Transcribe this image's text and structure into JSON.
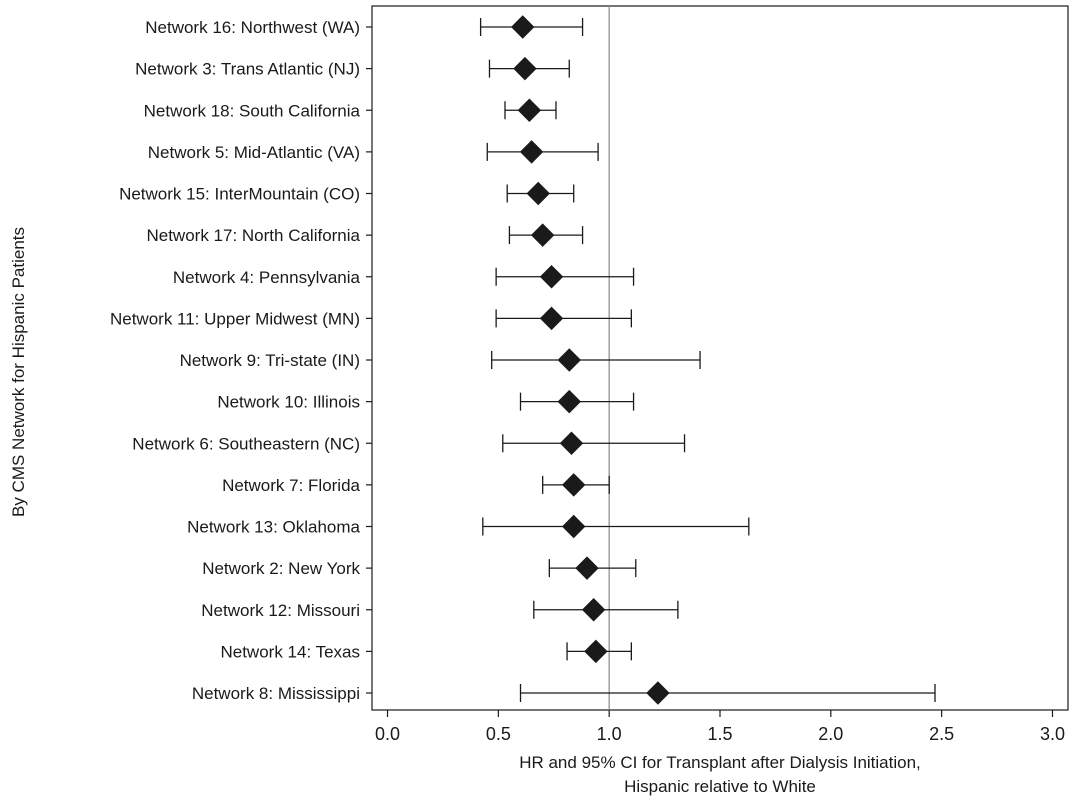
{
  "chart_data": {
    "type": "scatter",
    "subtype": "forest-plot",
    "title": "",
    "ylabel": "By CMS Network for Hispanic Patients",
    "xlabel_lines": [
      "HR and 95% CI for Transplant after Dialysis Initiation,",
      "Hispanic relative to White"
    ],
    "xlim": [
      -0.07,
      3.07
    ],
    "x_ticks": [
      0.0,
      0.5,
      1.0,
      1.5,
      2.0,
      2.5,
      3.0
    ],
    "x_tick_labels": [
      "0.0",
      "0.5",
      "1.0",
      "1.5",
      "2.0",
      "2.5",
      "3.0"
    ],
    "reference_line": 1.0,
    "grid": false,
    "marker": "diamond",
    "marker_color": "#1a1a1a",
    "rows": [
      {
        "label": "Network 16: Northwest (WA)",
        "hr": 0.61,
        "lo": 0.42,
        "hi": 0.88
      },
      {
        "label": "Network 3: Trans Atlantic (NJ)",
        "hr": 0.62,
        "lo": 0.46,
        "hi": 0.82
      },
      {
        "label": "Network 18: South California",
        "hr": 0.64,
        "lo": 0.53,
        "hi": 0.76
      },
      {
        "label": "Network 5: Mid-Atlantic (VA)",
        "hr": 0.65,
        "lo": 0.45,
        "hi": 0.95
      },
      {
        "label": "Network 15: InterMountain (CO)",
        "hr": 0.68,
        "lo": 0.54,
        "hi": 0.84
      },
      {
        "label": "Network 17: North California",
        "hr": 0.7,
        "lo": 0.55,
        "hi": 0.88
      },
      {
        "label": "Network 4: Pennsylvania",
        "hr": 0.74,
        "lo": 0.49,
        "hi": 1.11
      },
      {
        "label": "Network 11: Upper Midwest (MN)",
        "hr": 0.74,
        "lo": 0.49,
        "hi": 1.1
      },
      {
        "label": "Network 9: Tri-state (IN)",
        "hr": 0.82,
        "lo": 0.47,
        "hi": 1.41
      },
      {
        "label": "Network 10: Illinois",
        "hr": 0.82,
        "lo": 0.6,
        "hi": 1.11
      },
      {
        "label": "Network 6: Southeastern (NC)",
        "hr": 0.83,
        "lo": 0.52,
        "hi": 1.34
      },
      {
        "label": "Network 7: Florida",
        "hr": 0.84,
        "lo": 0.7,
        "hi": 1.0
      },
      {
        "label": "Network 13: Oklahoma",
        "hr": 0.84,
        "lo": 0.43,
        "hi": 1.63
      },
      {
        "label": "Network 2: New York",
        "hr": 0.9,
        "lo": 0.73,
        "hi": 1.12
      },
      {
        "label": "Network 12: Missouri",
        "hr": 0.93,
        "lo": 0.66,
        "hi": 1.31
      },
      {
        "label": "Network 14: Texas",
        "hr": 0.94,
        "lo": 0.81,
        "hi": 1.1
      },
      {
        "label": "Network 8: Mississippi",
        "hr": 1.22,
        "lo": 0.6,
        "hi": 2.47
      }
    ]
  }
}
